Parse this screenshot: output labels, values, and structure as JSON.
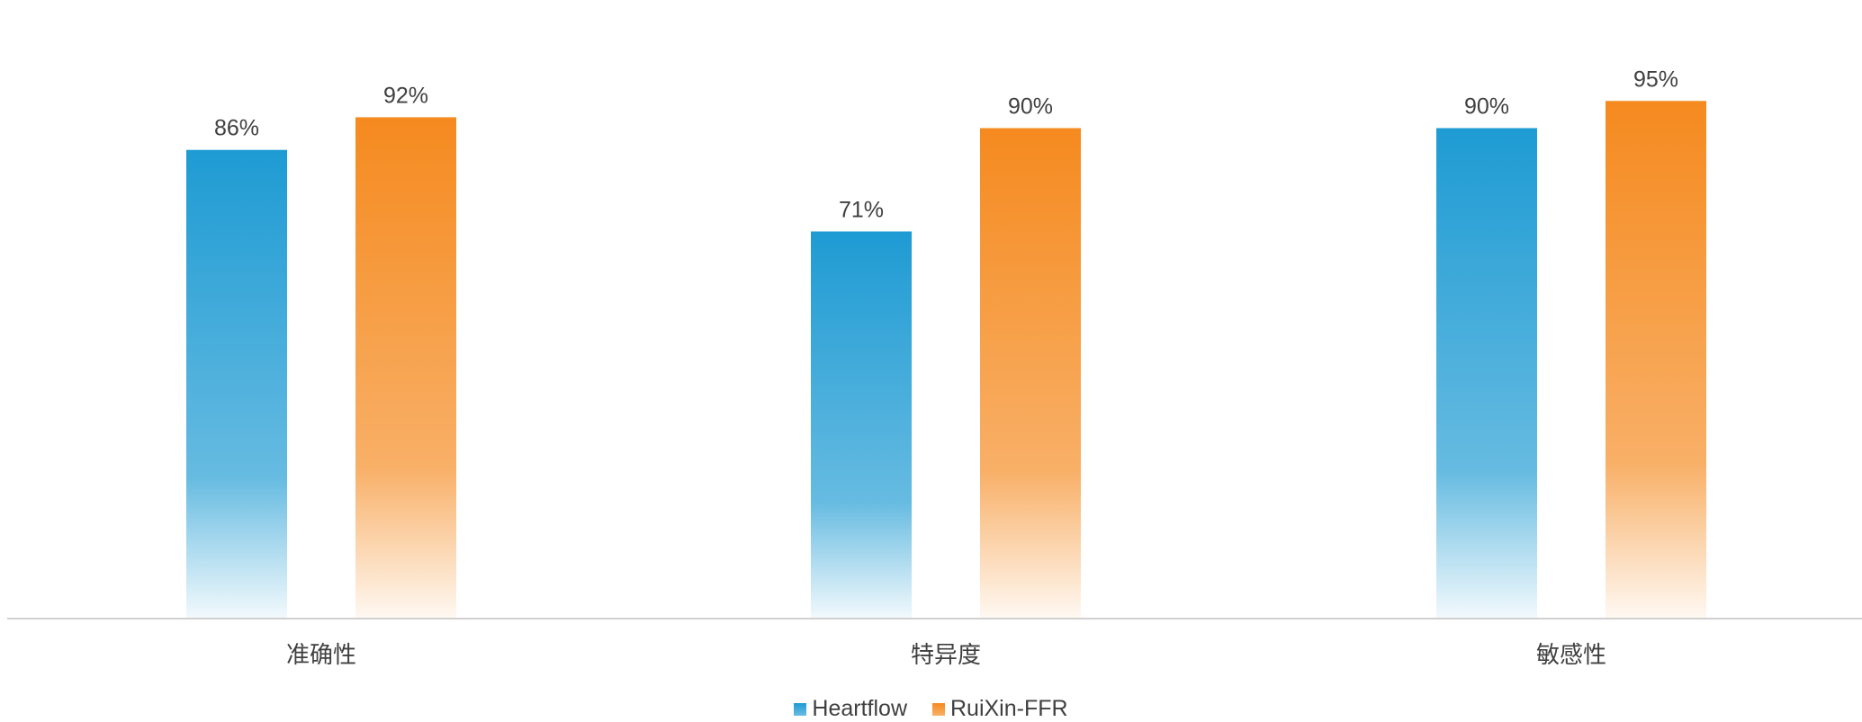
{
  "chart_data": {
    "type": "bar",
    "categories": [
      "准确性",
      "特异度",
      "敏感性"
    ],
    "series": [
      {
        "name": "Heartflow",
        "values": [
          86,
          71,
          90
        ],
        "labels": [
          "86%",
          "71%",
          "90%"
        ],
        "color": "#1E9BD3"
      },
      {
        "name": "RuiXin-FFR",
        "values": [
          92,
          90,
          95
        ],
        "labels": [
          "92%",
          "90%",
          "95%"
        ],
        "color": "#F58A1F"
      }
    ],
    "ylim": [
      0,
      100
    ],
    "grid": false,
    "legend": "bottom"
  }
}
